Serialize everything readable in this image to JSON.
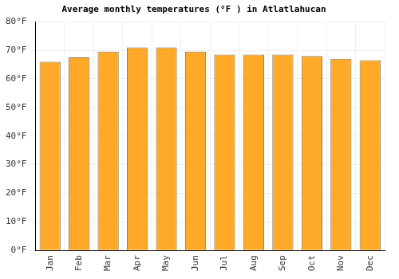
{
  "chart_data": {
    "type": "bar",
    "title": "Average monthly temperatures (°F ) in Atlatlahucan",
    "categories": [
      "Jan",
      "Feb",
      "Mar",
      "Apr",
      "May",
      "Jun",
      "Jul",
      "Aug",
      "Sep",
      "Oct",
      "Nov",
      "Dec"
    ],
    "values": [
      66,
      67.5,
      69.5,
      71,
      71,
      69.5,
      68.5,
      68.5,
      68.5,
      68,
      67,
      66.5
    ],
    "color": "#ffa928",
    "ylim": [
      0,
      80
    ],
    "yticks": [
      {
        "value": 0,
        "label": "0°F"
      },
      {
        "value": 10,
        "label": "10°F"
      },
      {
        "value": 20,
        "label": "20°F"
      },
      {
        "value": 30,
        "label": "30°F"
      },
      {
        "value": 40,
        "label": "40°F"
      },
      {
        "value": 50,
        "label": "50°F"
      },
      {
        "value": 60,
        "label": "60°F"
      },
      {
        "value": 70,
        "label": "70°F"
      },
      {
        "value": 80,
        "label": "80°F"
      }
    ],
    "grid": true
  }
}
